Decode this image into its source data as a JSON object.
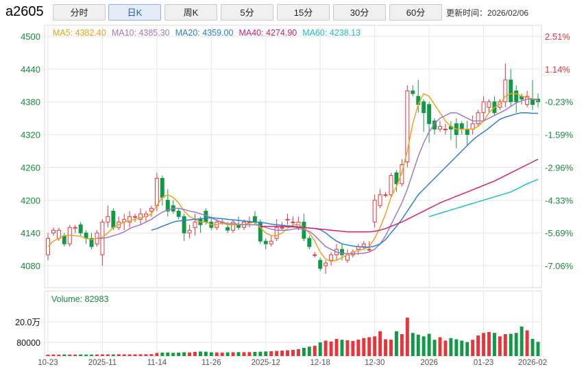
{
  "header": {
    "symbol": "a2605",
    "tabs": [
      {
        "label": "分时",
        "active": false
      },
      {
        "label": "日K",
        "active": true
      },
      {
        "label": "周K",
        "active": false
      },
      {
        "label": "5分",
        "active": false
      },
      {
        "label": "15分",
        "active": false
      },
      {
        "label": "30分",
        "active": false
      },
      {
        "label": "60分",
        "active": false
      }
    ],
    "updated_label": "更新时间：",
    "updated_value": "2026/02/06"
  },
  "ma_legend": [
    {
      "label": "MA5:",
      "value": "4382.40",
      "color": "#f0a21a"
    },
    {
      "label": "MA10:",
      "value": "4385.30",
      "color": "#a078c8"
    },
    {
      "label": "MA20:",
      "value": "4359.00",
      "color": "#2a7fd4"
    },
    {
      "label": "MA40:",
      "value": "4274.90",
      "color": "#d6206a"
    },
    {
      "label": "MA60:",
      "value": "4238.13",
      "color": "#1ec0c8"
    }
  ],
  "volume_label": "Volume:",
  "volume_value": "82983",
  "colors": {
    "up": "#e8343a",
    "down": "#119a46",
    "grid": "#e6e6e6",
    "axis_left": "#1a8a3c",
    "pct_up": "#e8343a",
    "pct_down": "#1a8a3c"
  },
  "chart_data": {
    "type": "candlestick",
    "ylim": [
      4040,
      4520
    ],
    "price_ticks": [
      4500,
      4440,
      4380,
      4320,
      4260,
      4200,
      4140,
      4080
    ],
    "pct_ticks": [
      "2.51%",
      "1.14%",
      "-0.23%",
      "-1.59%",
      "-2.96%",
      "-4.33%",
      "-5.69%",
      "-7.06%"
    ],
    "volume_ticks": [
      "20.0万",
      "80000"
    ],
    "volume_ylim": [
      0,
      300000
    ],
    "volume_tick_values": [
      200000,
      80000
    ],
    "x_labels": [
      {
        "i": 0,
        "label": "10-23"
      },
      {
        "i": 10,
        "label": "2025-11"
      },
      {
        "i": 20,
        "label": "11-14"
      },
      {
        "i": 30,
        "label": "11-26"
      },
      {
        "i": 40,
        "label": "2025-12"
      },
      {
        "i": 50,
        "label": "12-18"
      },
      {
        "i": 60,
        "label": "12-30"
      },
      {
        "i": 70,
        "label": "2026"
      },
      {
        "i": 80,
        "label": "01-23"
      },
      {
        "i": 89,
        "label": "2026-02"
      }
    ],
    "candles": [
      [
        4100,
        4130,
        4090,
        4140
      ],
      [
        4140,
        4145,
        4135,
        4150
      ],
      [
        4130,
        4145,
        4125,
        4150
      ],
      [
        4135,
        4120,
        4115,
        4140
      ],
      [
        4120,
        4150,
        4115,
        4155
      ],
      [
        4150,
        4150,
        4140,
        4155
      ],
      [
        4155,
        4140,
        4135,
        4160
      ],
      [
        4140,
        4130,
        4120,
        4145
      ],
      [
        4130,
        4115,
        4110,
        4140
      ],
      [
        4120,
        4140,
        4115,
        4145
      ],
      [
        4100,
        4160,
        4080,
        4165
      ],
      [
        4160,
        4170,
        4150,
        4190
      ],
      [
        4180,
        4150,
        4145,
        4185
      ],
      [
        4150,
        4160,
        4145,
        4170
      ],
      [
        4160,
        4165,
        4145,
        4175
      ],
      [
        4160,
        4170,
        4150,
        4180
      ],
      [
        4170,
        4170,
        4160,
        4175
      ],
      [
        4165,
        4175,
        4155,
        4185
      ],
      [
        4170,
        4175,
        4160,
        4180
      ],
      [
        4180,
        4185,
        4170,
        4190
      ],
      [
        4190,
        4240,
        4180,
        4250
      ],
      [
        4240,
        4205,
        4190,
        4245
      ],
      [
        4200,
        4180,
        4170,
        4220
      ],
      [
        4190,
        4180,
        4175,
        4200
      ],
      [
        4180,
        4170,
        4165,
        4185
      ],
      [
        4170,
        4140,
        4125,
        4175
      ],
      [
        4140,
        4145,
        4130,
        4155
      ],
      [
        4150,
        4160,
        4135,
        4175
      ],
      [
        4165,
        4155,
        4140,
        4170
      ],
      [
        4180,
        4160,
        4155,
        4185
      ],
      [
        4160,
        4150,
        4145,
        4170
      ],
      [
        4150,
        4160,
        4145,
        4165
      ],
      [
        4160,
        4160,
        4155,
        4165
      ],
      [
        4150,
        4145,
        4140,
        4160
      ],
      [
        4145,
        4160,
        4140,
        4165
      ],
      [
        4155,
        4150,
        4145,
        4170
      ],
      [
        4150,
        4160,
        4145,
        4165
      ],
      [
        4160,
        4160,
        4150,
        4170
      ],
      [
        4170,
        4160,
        4155,
        4180
      ],
      [
        4160,
        4125,
        4120,
        4165
      ],
      [
        4125,
        4120,
        4110,
        4130
      ],
      [
        4120,
        4125,
        4115,
        4135
      ],
      [
        4130,
        4150,
        4125,
        4165
      ],
      [
        4150,
        4150,
        4145,
        4160
      ],
      [
        4165,
        4165,
        4155,
        4175
      ],
      [
        4160,
        4160,
        4150,
        4170
      ],
      [
        4150,
        4160,
        4145,
        4170
      ],
      [
        4160,
        4130,
        4125,
        4175
      ],
      [
        4130,
        4115,
        4110,
        4135
      ],
      [
        4100,
        4100,
        4095,
        4105
      ],
      [
        4090,
        4075,
        4070,
        4095
      ],
      [
        4080,
        4085,
        4065,
        4090
      ],
      [
        4090,
        4100,
        4080,
        4105
      ],
      [
        4100,
        4110,
        4090,
        4120
      ],
      [
        4110,
        4100,
        4090,
        4120
      ],
      [
        4090,
        4100,
        4085,
        4110
      ],
      [
        4100,
        4105,
        4095,
        4110
      ],
      [
        4110,
        4115,
        4100,
        4120
      ],
      [
        4115,
        4120,
        4110,
        4125
      ],
      [
        4110,
        4110,
        4105,
        4125
      ],
      [
        4160,
        4200,
        4150,
        4210
      ],
      [
        4190,
        4210,
        4185,
        4220
      ],
      [
        4210,
        4210,
        4205,
        4215
      ],
      [
        4210,
        4245,
        4205,
        4250
      ],
      [
        4250,
        4230,
        4215,
        4255
      ],
      [
        4230,
        4265,
        4225,
        4275
      ],
      [
        4270,
        4400,
        4260,
        4410
      ],
      [
        4400,
        4395,
        4390,
        4410
      ],
      [
        4390,
        4375,
        4360,
        4420
      ],
      [
        4380,
        4360,
        4325,
        4385
      ],
      [
        4375,
        4340,
        4305,
        4380
      ],
      [
        4345,
        4330,
        4320,
        4350
      ],
      [
        4330,
        4335,
        4325,
        4345
      ],
      [
        4330,
        4330,
        4320,
        4340
      ],
      [
        4335,
        4330,
        4310,
        4345
      ],
      [
        4340,
        4320,
        4295,
        4350
      ],
      [
        4340,
        4330,
        4320,
        4345
      ],
      [
        4330,
        4320,
        4300,
        4345
      ],
      [
        4330,
        4340,
        4320,
        4355
      ],
      [
        4340,
        4360,
        4335,
        4365
      ],
      [
        4360,
        4380,
        4345,
        4390
      ],
      [
        4370,
        4380,
        4360,
        4385
      ],
      [
        4380,
        4360,
        4355,
        4390
      ],
      [
        4370,
        4380,
        4365,
        4385
      ],
      [
        4380,
        4420,
        4370,
        4450
      ],
      [
        4420,
        4380,
        4370,
        4440
      ],
      [
        4400,
        4380,
        4360,
        4410
      ],
      [
        4390,
        4385,
        4375,
        4395
      ],
      [
        4375,
        4390,
        4370,
        4400
      ],
      [
        4385,
        4375,
        4365,
        4420
      ],
      [
        4385,
        4380,
        4370,
        4395
      ]
    ],
    "ma": {
      "MA5": [
        4115,
        4125,
        4130,
        4135,
        4136,
        4135,
        4134,
        4130,
        4128,
        4130,
        4132,
        4140,
        4150,
        4155,
        4160,
        4162,
        4165,
        4168,
        4170,
        4175,
        4190,
        4205,
        4210,
        4205,
        4195,
        4180,
        4170,
        4165,
        4160,
        4160,
        4155,
        4155,
        4158,
        4155,
        4155,
        4155,
        4155,
        4158,
        4160,
        4150,
        4140,
        4135,
        4135,
        4140,
        4148,
        4155,
        4155,
        4150,
        4140,
        4125,
        4105,
        4092,
        4088,
        4090,
        4095,
        4100,
        4105,
        4108,
        4110,
        4115,
        4130,
        4150,
        4175,
        4205,
        4225,
        4250,
        4290,
        4340,
        4375,
        4395,
        4390,
        4375,
        4360,
        4345,
        4335,
        4330,
        4330,
        4330,
        4330,
        4335,
        4345,
        4360,
        4370,
        4375,
        4390,
        4395,
        4395,
        4390,
        4388,
        4385,
        4382
      ],
      "MA10": [
        null,
        null,
        null,
        null,
        null,
        null,
        null,
        null,
        null,
        4130,
        4130,
        4132,
        4135,
        4138,
        4142,
        4148,
        4152,
        4155,
        4160,
        4165,
        4172,
        4178,
        4182,
        4185,
        4185,
        4183,
        4180,
        4178,
        4175,
        4172,
        4168,
        4163,
        4160,
        4157,
        4157,
        4156,
        4155,
        4155,
        4155,
        4153,
        4150,
        4147,
        4145,
        4145,
        4145,
        4147,
        4148,
        4146,
        4143,
        4135,
        4125,
        4115,
        4110,
        4105,
        4103,
        4102,
        4102,
        4102,
        4103,
        4105,
        4110,
        4120,
        4135,
        4155,
        4175,
        4195,
        4220,
        4250,
        4280,
        4305,
        4325,
        4340,
        4350,
        4355,
        4360,
        4360,
        4355,
        4350,
        4345,
        4345,
        4345,
        4350,
        4355,
        4360,
        4365,
        4372,
        4378,
        4382,
        4385,
        4385,
        4385
      ],
      "MA20": [
        null,
        null,
        null,
        null,
        null,
        null,
        null,
        null,
        null,
        null,
        null,
        null,
        null,
        null,
        null,
        null,
        null,
        null,
        null,
        4145,
        4148,
        4152,
        4156,
        4160,
        4162,
        4163,
        4164,
        4165,
        4166,
        4167,
        4168,
        4167,
        4166,
        4165,
        4164,
        4163,
        4162,
        4161,
        4160,
        4159,
        4158,
        4156,
        4155,
        4154,
        4153,
        4152,
        4151,
        4150,
        4149,
        4148,
        4146,
        4140,
        4132,
        4125,
        4120,
        4118,
        4116,
        4115,
        4114,
        4114,
        4116,
        4120,
        4128,
        4140,
        4152,
        4165,
        4180,
        4195,
        4210,
        4220,
        4230,
        4240,
        4250,
        4260,
        4270,
        4280,
        4290,
        4300,
        4310,
        4318,
        4325,
        4332,
        4340,
        4348,
        4352,
        4355,
        4358,
        4360,
        4360,
        4359,
        4359
      ],
      "MA40": [
        null,
        null,
        null,
        null,
        null,
        null,
        null,
        null,
        null,
        null,
        null,
        null,
        null,
        null,
        null,
        null,
        null,
        null,
        null,
        null,
        null,
        null,
        null,
        null,
        null,
        null,
        null,
        null,
        null,
        null,
        null,
        null,
        null,
        null,
        null,
        null,
        null,
        null,
        null,
        4152,
        4152,
        4152,
        4152,
        4152,
        4151,
        4151,
        4150,
        4150,
        4149,
        4148,
        4147,
        4146,
        4145,
        4144,
        4143,
        4142,
        4142,
        4142,
        4142,
        4142,
        4143,
        4145,
        4148,
        4152,
        4156,
        4160,
        4165,
        4170,
        4175,
        4180,
        4185,
        4190,
        4195,
        4199,
        4203,
        4207,
        4211,
        4215,
        4219,
        4223,
        4227,
        4231,
        4235,
        4240,
        4245,
        4250,
        4255,
        4260,
        4265,
        4270,
        4275
      ],
      "MA60": [
        null,
        null,
        null,
        null,
        null,
        null,
        null,
        null,
        null,
        null,
        null,
        null,
        null,
        null,
        null,
        null,
        null,
        null,
        null,
        null,
        null,
        null,
        null,
        null,
        null,
        null,
        null,
        null,
        null,
        null,
        null,
        null,
        null,
        null,
        null,
        null,
        null,
        null,
        null,
        null,
        null,
        null,
        null,
        null,
        null,
        null,
        null,
        null,
        null,
        null,
        null,
        null,
        null,
        null,
        null,
        null,
        null,
        null,
        null,
        null,
        null,
        null,
        null,
        null,
        null,
        null,
        null,
        null,
        null,
        null,
        4170,
        4173,
        4176,
        4179,
        4182,
        4185,
        4188,
        4191,
        4194,
        4197,
        4200,
        4203,
        4206,
        4209,
        4212,
        4215,
        4220,
        4225,
        4230,
        4234,
        4238
      ]
    },
    "volume": [
      8000,
      9000,
      8500,
      9500,
      9000,
      8800,
      9200,
      8600,
      9000,
      9400,
      9800,
      10000,
      9500,
      10500,
      10000,
      9800,
      10000,
      10200,
      10500,
      11000,
      18000,
      20000,
      21000,
      19000,
      20000,
      22000,
      21000,
      24000,
      26000,
      25000,
      22000,
      21000,
      20000,
      21500,
      22000,
      23000,
      22500,
      23000,
      24000,
      25000,
      27000,
      28000,
      30000,
      32000,
      34000,
      36000,
      40000,
      48000,
      55000,
      60000,
      80000,
      90000,
      85000,
      100000,
      95000,
      92000,
      88000,
      96000,
      105000,
      110000,
      115000,
      145000,
      98000,
      96000,
      145000,
      128000,
      225000,
      135000,
      125000,
      115000,
      130000,
      95000,
      110000,
      90000,
      105000,
      98000,
      90000,
      82000,
      95000,
      120000,
      135000,
      140000,
      135000,
      115000,
      128000,
      130000,
      135000,
      172000,
      150000,
      100000,
      82983
    ]
  }
}
